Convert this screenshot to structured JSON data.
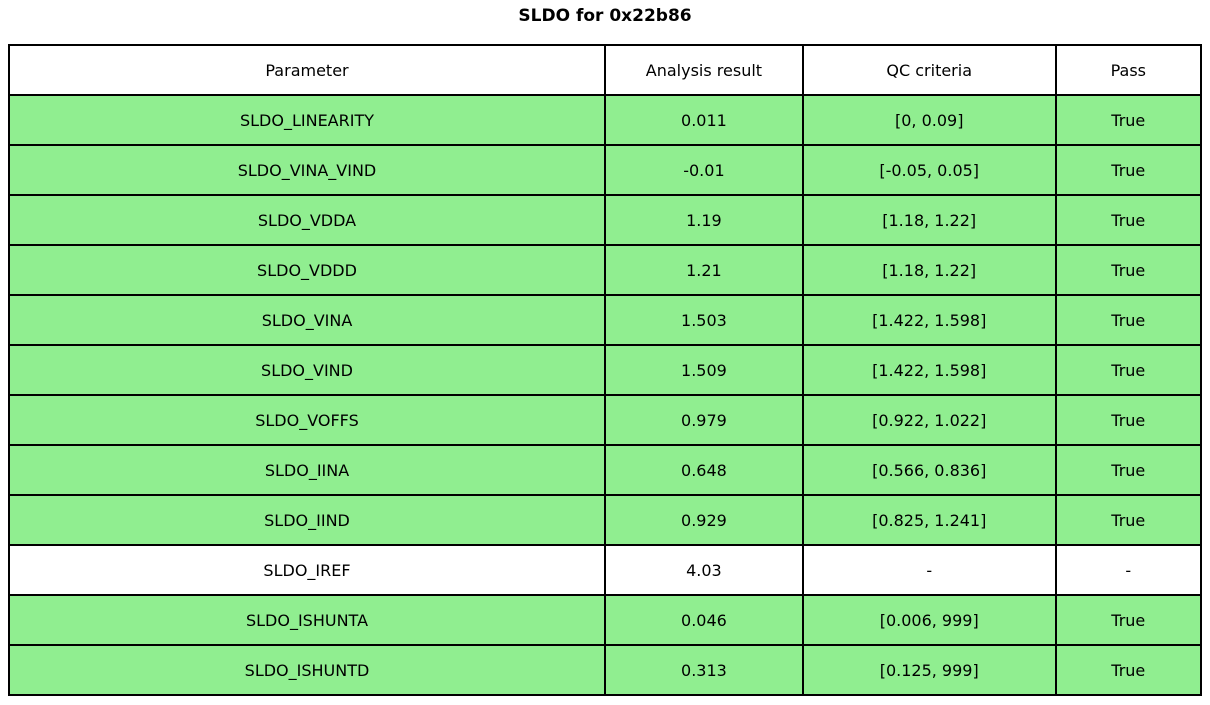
{
  "title": "SLDO for 0x22b86",
  "colors": {
    "pass_row_background": "#90EE90",
    "neutral_row_background": "#FFFFFF",
    "header_background": "#FFFFFF",
    "border": "#000000",
    "text": "#000000",
    "page_background": "#FFFFFF"
  },
  "chart_data": {
    "type": "table",
    "title": "SLDO for 0x22b86",
    "columns": [
      "Parameter",
      "Analysis result",
      "QC criteria",
      "Pass"
    ],
    "rows": [
      {
        "parameter": "SLDO_LINEARITY",
        "analysis_result": "0.011",
        "qc_criteria": "[0, 0.09]",
        "pass": "True",
        "highlighted": true
      },
      {
        "parameter": "SLDO_VINA_VIND",
        "analysis_result": "-0.01",
        "qc_criteria": "[-0.05, 0.05]",
        "pass": "True",
        "highlighted": true
      },
      {
        "parameter": "SLDO_VDDA",
        "analysis_result": "1.19",
        "qc_criteria": "[1.18, 1.22]",
        "pass": "True",
        "highlighted": true
      },
      {
        "parameter": "SLDO_VDDD",
        "analysis_result": "1.21",
        "qc_criteria": "[1.18, 1.22]",
        "pass": "True",
        "highlighted": true
      },
      {
        "parameter": "SLDO_VINA",
        "analysis_result": "1.503",
        "qc_criteria": "[1.422, 1.598]",
        "pass": "True",
        "highlighted": true
      },
      {
        "parameter": "SLDO_VIND",
        "analysis_result": "1.509",
        "qc_criteria": "[1.422, 1.598]",
        "pass": "True",
        "highlighted": true
      },
      {
        "parameter": "SLDO_VOFFS",
        "analysis_result": "0.979",
        "qc_criteria": "[0.922, 1.022]",
        "pass": "True",
        "highlighted": true
      },
      {
        "parameter": "SLDO_IINA",
        "analysis_result": "0.648",
        "qc_criteria": "[0.566, 0.836]",
        "pass": "True",
        "highlighted": true
      },
      {
        "parameter": "SLDO_IIND",
        "analysis_result": "0.929",
        "qc_criteria": "[0.825, 1.241]",
        "pass": "True",
        "highlighted": true
      },
      {
        "parameter": "SLDO_IREF",
        "analysis_result": "4.03",
        "qc_criteria": "-",
        "pass": "-",
        "highlighted": false
      },
      {
        "parameter": "SLDO_ISHUNTA",
        "analysis_result": "0.046",
        "qc_criteria": "[0.006, 999]",
        "pass": "True",
        "highlighted": true
      },
      {
        "parameter": "SLDO_ISHUNTD",
        "analysis_result": "0.313",
        "qc_criteria": "[0.125, 999]",
        "pass": "True",
        "highlighted": true
      }
    ],
    "layout": {
      "legend_position": "none",
      "grid": "all-cell-borders"
    }
  }
}
